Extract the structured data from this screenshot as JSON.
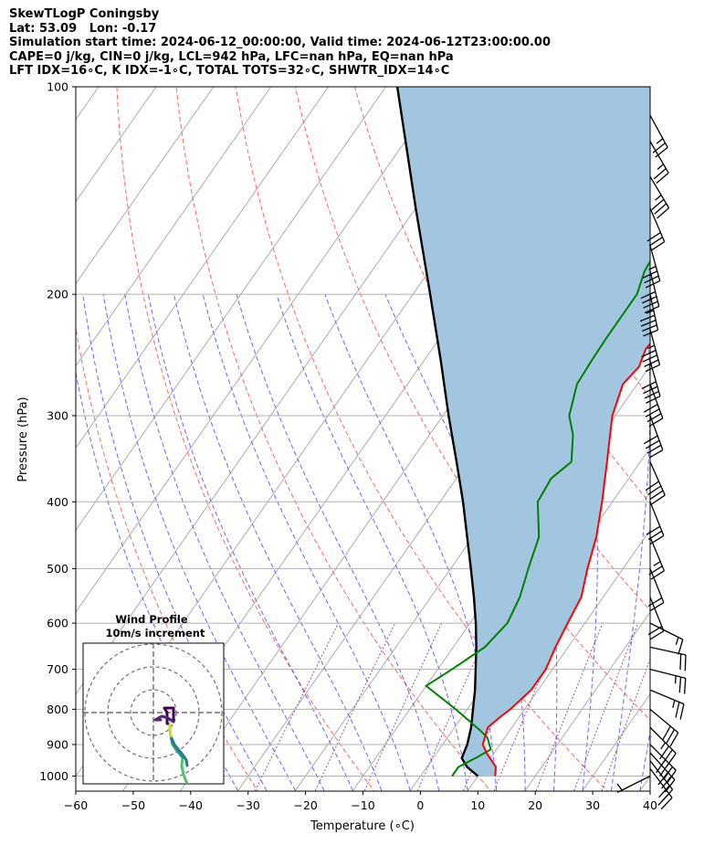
{
  "header": {
    "line1": "SkewTLogP Coningsby",
    "line2": "Lat: 53.09   Lon: -0.17",
    "line3": "Simulation start time: 2024-06-12_00:00:00, Valid time: 2024-06-12T23:00:00.00",
    "line4": "CAPE=0 j/kg, CIN=0 j/kg, LCL=942 hPa, LFC=nan hPa, EQ=nan hPa",
    "line5": "LFT IDX=16∘C, K IDX=-1∘C, TOTAL TOTS=32∘C, SHWTR_IDX=14∘C"
  },
  "inset": {
    "title": "Wind Profile",
    "subtitle": "10m/s increment"
  },
  "colors": {
    "temperature": "#ff0000",
    "dewpoint": "#008000",
    "parcel": "#000000",
    "cape_fill": "#a3c6e0",
    "dry_adiabat": "#ff0000",
    "moist_adiabat": "#0000ff",
    "mixing_ratio": "#800080",
    "isotherm": "#808080"
  },
  "chart_data": {
    "type": "line",
    "subtype": "skew-T log-P",
    "xlabel": "Temperature (∘C)",
    "ylabel": "Pressure (hPa)",
    "xlim": [
      -60,
      40
    ],
    "ylim": [
      1050,
      100
    ],
    "y_scale": "log",
    "x_ticks": [
      -60,
      -50,
      -40,
      -30,
      -20,
      -10,
      0,
      10,
      20,
      30,
      40
    ],
    "x_tick_labels": [
      "−60",
      "−50",
      "−40",
      "−30",
      "−20",
      "−10",
      "0",
      "10",
      "20",
      "30",
      "40"
    ],
    "y_ticks": [
      1000,
      900,
      800,
      700,
      600,
      500,
      400,
      300,
      200,
      100
    ],
    "y_tick_labels": [
      "1000",
      "900",
      "800",
      "700",
      "600",
      "500",
      "400",
      "300",
      "200",
      "100"
    ],
    "grid": true,
    "series": [
      {
        "key": "temperature",
        "points": [
          [
            1000,
            13
          ],
          [
            970,
            12
          ],
          [
            930,
            9
          ],
          [
            900,
            7
          ],
          [
            850,
            5.8
          ],
          [
            820,
            6.7
          ],
          [
            800,
            7.5
          ],
          [
            750,
            8.8
          ],
          [
            700,
            8.8
          ],
          [
            650,
            7.8
          ],
          [
            600,
            7
          ],
          [
            550,
            6.2
          ],
          [
            500,
            3.8
          ],
          [
            450,
            1.5
          ],
          [
            400,
            -1.8
          ],
          [
            350,
            -5.8
          ],
          [
            300,
            -10.5
          ],
          [
            270,
            -12.5
          ],
          [
            255,
            -11.8
          ],
          [
            240,
            -12.8
          ],
          [
            225,
            -12.3
          ],
          [
            200,
            -9.5
          ],
          [
            185,
            -7
          ],
          [
            170,
            -3
          ],
          [
            155,
            1
          ],
          [
            145,
            4
          ],
          [
            135,
            6
          ],
          [
            120,
            9
          ],
          [
            110,
            11
          ],
          [
            100,
            12
          ]
        ]
      },
      {
        "key": "dewpoint",
        "points": [
          [
            1000,
            5.5
          ],
          [
            970,
            5.5
          ],
          [
            940,
            7.5
          ],
          [
            915,
            9
          ],
          [
            880,
            7
          ],
          [
            860,
            5
          ],
          [
            800,
            -2
          ],
          [
            740,
            -10
          ],
          [
            700,
            -7.5
          ],
          [
            650,
            -4.5
          ],
          [
            600,
            -3.5
          ],
          [
            550,
            -4.5
          ],
          [
            500,
            -6.5
          ],
          [
            450,
            -8.5
          ],
          [
            400,
            -13
          ],
          [
            370,
            -13.5
          ],
          [
            350,
            -12
          ],
          [
            320,
            -15
          ],
          [
            300,
            -18
          ],
          [
            270,
            -20.5
          ],
          [
            250,
            -20.8
          ],
          [
            230,
            -21
          ],
          [
            200,
            -21
          ],
          [
            185,
            -22.5
          ],
          [
            170,
            -23
          ],
          [
            155,
            -24
          ],
          [
            145,
            -25
          ],
          [
            133,
            -27
          ],
          [
            120,
            -22
          ],
          [
            110,
            -17
          ],
          [
            100,
            -13
          ]
        ]
      },
      {
        "key": "parcel",
        "points": [
          [
            1000,
            10
          ],
          [
            970,
            7
          ],
          [
            942,
            5
          ],
          [
            900,
            4.3
          ],
          [
            850,
            2.9
          ],
          [
            800,
            1
          ],
          [
            750,
            -1
          ],
          [
            700,
            -3.4
          ],
          [
            650,
            -6
          ],
          [
            600,
            -9
          ],
          [
            550,
            -12.5
          ],
          [
            500,
            -16.5
          ],
          [
            450,
            -21
          ],
          [
            400,
            -26
          ],
          [
            350,
            -32
          ],
          [
            300,
            -39
          ],
          [
            250,
            -47
          ],
          [
            200,
            -57
          ],
          [
            150,
            -70
          ],
          [
            100,
            -88
          ]
        ]
      }
    ],
    "wind_barbs": [
      {
        "p": 1000,
        "u": 2,
        "v": 1
      },
      {
        "p": 975,
        "u": -6,
        "v": 8
      },
      {
        "p": 950,
        "u": -7,
        "v": 9
      },
      {
        "p": 925,
        "u": -10,
        "v": 11
      },
      {
        "p": 900,
        "u": -14,
        "v": 14
      },
      {
        "p": 850,
        "u": -13,
        "v": 13
      },
      {
        "p": 800,
        "u": -12,
        "v": 10
      },
      {
        "p": 750,
        "u": -12,
        "v": 5
      },
      {
        "p": 700,
        "u": -12,
        "v": 3
      },
      {
        "p": 650,
        "u": -9,
        "v": 2
      },
      {
        "p": 600,
        "u": -6,
        "v": 3
      },
      {
        "p": 550,
        "u": -4,
        "v": 10
      },
      {
        "p": 500,
        "u": -4,
        "v": 10
      },
      {
        "p": 450,
        "u": -5,
        "v": 12
      },
      {
        "p": 400,
        "u": -6,
        "v": 15
      },
      {
        "p": 350,
        "u": -8,
        "v": 18
      },
      {
        "p": 300,
        "u": -7,
        "v": 19
      },
      {
        "p": 270,
        "u": -7,
        "v": 19
      },
      {
        "p": 250,
        "u": -6,
        "v": 21
      },
      {
        "p": 225,
        "u": -6,
        "v": 22
      },
      {
        "p": 200,
        "u": -5,
        "v": 23
      },
      {
        "p": 185,
        "u": -5,
        "v": 20
      },
      {
        "p": 170,
        "u": -5,
        "v": 18
      },
      {
        "p": 150,
        "u": -6,
        "v": 14
      },
      {
        "p": 135,
        "u": -9,
        "v": 15
      },
      {
        "p": 120,
        "u": -7,
        "v": 12
      },
      {
        "p": 110,
        "u": -6,
        "v": 11
      }
    ],
    "hodograph": {
      "rings_ms": [
        10,
        20,
        30
      ],
      "points_uv": [
        [
          8,
          -20
        ],
        [
          7,
          -16
        ],
        [
          6,
          -12
        ],
        [
          5,
          -8
        ],
        [
          3,
          -5
        ],
        [
          -2,
          -4
        ],
        [
          -4,
          -3
        ],
        [
          -3,
          3
        ],
        [
          -3,
          8
        ],
        [
          -1,
          9
        ],
        [
          1,
          6
        ],
        [
          0,
          2
        ],
        [
          -3,
          0
        ],
        [
          -7,
          2
        ],
        [
          -5,
          1
        ],
        [
          -3,
          7
        ],
        [
          -2,
          12
        ],
        [
          -1,
          13
        ],
        [
          -1,
          9
        ],
        [
          0,
          5
        ]
      ]
    }
  }
}
